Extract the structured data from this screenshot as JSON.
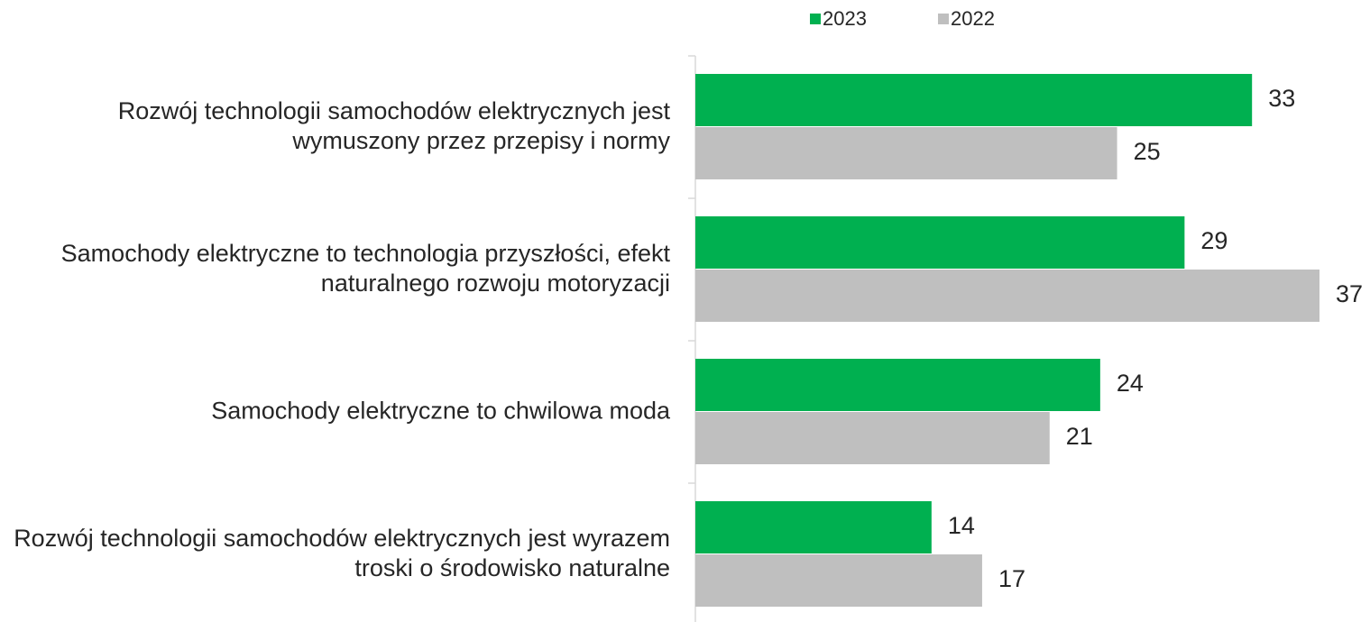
{
  "chart_data": {
    "type": "hbar",
    "categories": [
      "Rozwój technologii samochodów elektrycznych jest wymuszony przez przepisy i normy",
      "Samochody elektryczne to technologia przyszłości, efekt naturalnego rozwoju motoryzacji",
      "Samochody elektryczne to chwilowa moda",
      "Rozwój technologii samochodów elektrycznych jest wyrazem troski o środowisko naturalne"
    ],
    "series": [
      {
        "name": "2023",
        "color": "#00b050",
        "values": [
          33,
          29,
          24,
          14
        ]
      },
      {
        "name": "2022",
        "color": "#bfbfbf",
        "values": [
          25,
          37,
          21,
          17
        ]
      }
    ],
    "xlim": [
      0,
      37
    ],
    "legend": "top"
  }
}
